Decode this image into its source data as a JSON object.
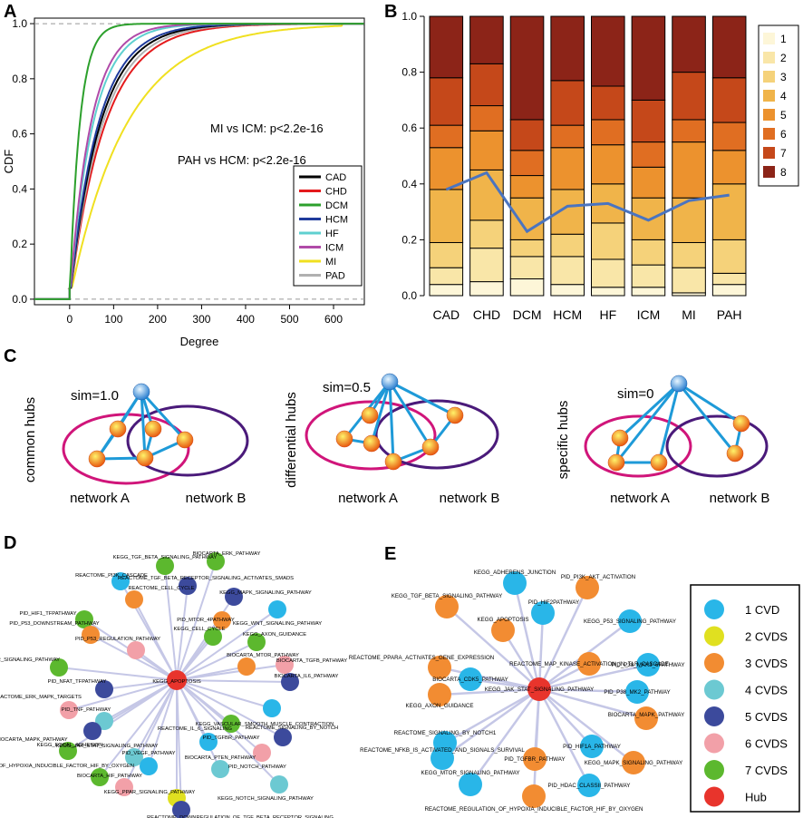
{
  "panels": {
    "A": "A",
    "B": "B",
    "C": "C",
    "D": "D",
    "E": "E"
  },
  "colors": {
    "CAD": "#000000",
    "CHD": "#e41a1c",
    "DCM": "#2ca02c",
    "HCM": "#1f3b9c",
    "HF": "#5fd0d0",
    "ICM": "#b04aa8",
    "MI": "#f0e020",
    "PAD": "#b0b0b0",
    "b1": "#fdf6d8",
    "b2": "#f9e6a8",
    "b3": "#f5d27a",
    "b4": "#f0b44a",
    "b5": "#ec922e",
    "b6": "#e06e22",
    "b7": "#c5481a",
    "b8": "#8c2418",
    "node_blue": "#29b6e8",
    "node_yellow": "#e0e020",
    "node_orange": "#f28c32",
    "node_cyan": "#6cc9d2",
    "node_navy": "#3c4a9c",
    "node_pink": "#f2a0a8",
    "node_green": "#5cb82e",
    "node_hub": "#e8342c",
    "edge": "#c5c7e6"
  },
  "chart_data": [
    {
      "id": "A",
      "type": "line",
      "title": "",
      "xlabel": "Degree",
      "ylabel": "CDF",
      "xlim": [
        -80,
        670
      ],
      "ylim": [
        -0.02,
        1.02
      ],
      "xticks": [
        0,
        100,
        200,
        300,
        400,
        500,
        600
      ],
      "yticks": [
        0.0,
        0.2,
        0.4,
        0.6,
        0.8,
        1.0
      ],
      "ytick_labels": [
        "0.0",
        "0.2",
        "0.4",
        "0.6",
        "0.8",
        "1.0"
      ],
      "annotations": [
        "MI vs ICM: p<2.2e-16",
        "PAH vs HCM: p<2.2e-16"
      ],
      "legend": "right",
      "series": [
        {
          "name": "CAD",
          "k": 0.0145,
          "max": 540
        },
        {
          "name": "CHD",
          "k": 0.0125,
          "max": 540
        },
        {
          "name": "DCM",
          "k": 0.044,
          "max": 300
        },
        {
          "name": "HCM",
          "k": 0.0155,
          "max": 560
        },
        {
          "name": "HF",
          "k": 0.019,
          "max": 520
        },
        {
          "name": "ICM",
          "k": 0.021,
          "max": 540
        },
        {
          "name": "MI",
          "k": 0.0078,
          "max": 620
        },
        {
          "name": "PAD",
          "k": 0.0135,
          "max": 560
        }
      ]
    },
    {
      "id": "B",
      "type": "bar",
      "stacked": true,
      "categories": [
        "CAD",
        "CHD",
        "DCM",
        "HCM",
        "HF",
        "ICM",
        "MI",
        "PAH"
      ],
      "ylim": [
        0,
        1
      ],
      "yticks": [
        0.0,
        0.2,
        0.4,
        0.6,
        0.8,
        1.0
      ],
      "ytick_labels": [
        "0.0",
        "0.2",
        "0.4",
        "0.6",
        "0.8",
        "1.0"
      ],
      "legend": "right",
      "series": [
        {
          "name": "1",
          "values": [
            0.04,
            0.05,
            0.06,
            0.04,
            0.03,
            0.03,
            0.01,
            0.04
          ]
        },
        {
          "name": "2",
          "values": [
            0.06,
            0.12,
            0.08,
            0.1,
            0.1,
            0.08,
            0.09,
            0.04
          ]
        },
        {
          "name": "3",
          "values": [
            0.09,
            0.1,
            0.06,
            0.08,
            0.13,
            0.09,
            0.09,
            0.12
          ]
        },
        {
          "name": "4",
          "values": [
            0.19,
            0.18,
            0.15,
            0.16,
            0.14,
            0.15,
            0.16,
            0.2
          ]
        },
        {
          "name": "5",
          "values": [
            0.15,
            0.14,
            0.08,
            0.15,
            0.14,
            0.11,
            0.2,
            0.12
          ]
        },
        {
          "name": "6",
          "values": [
            0.08,
            0.09,
            0.09,
            0.08,
            0.09,
            0.09,
            0.08,
            0.1
          ]
        },
        {
          "name": "7",
          "values": [
            0.17,
            0.15,
            0.11,
            0.16,
            0.12,
            0.15,
            0.17,
            0.16
          ]
        },
        {
          "name": "8",
          "values": [
            0.22,
            0.17,
            0.37,
            0.23,
            0.25,
            0.3,
            0.2,
            0.22
          ]
        }
      ],
      "overlay_line": {
        "name": "blue line",
        "values": [
          0.38,
          0.44,
          0.23,
          0.32,
          0.33,
          0.27,
          0.34,
          0.36
        ]
      }
    }
  ],
  "panelC": {
    "diagrams": [
      {
        "sim": "sim=1.0",
        "side": "common hubs",
        "netA": "network A",
        "netB": "network B"
      },
      {
        "sim": "sim=0.5",
        "side": "differential hubs",
        "netA": "network A",
        "netB": "network B"
      },
      {
        "sim": "sim=0",
        "side": "specific hubs",
        "netA": "network A",
        "netB": "network B"
      }
    ]
  },
  "panelD": {
    "hub": "KEGG_APOPTOSIS",
    "nodes": [
      {
        "label": "KEGG_TGF_BETA_SIGNALING_PATHWAY",
        "c": "green"
      },
      {
        "label": "BIOCARTA_ERK_PATHWAY",
        "c": "green"
      },
      {
        "label": "REACTOME_PI3K_CASCADE",
        "c": "blue"
      },
      {
        "label": "REACTOME_TGF_BETA_RECEPTOR_SIGNALING_ACTIVATES_SMADS",
        "c": "navy"
      },
      {
        "label": "REACTOME_CELL_CYCLE",
        "c": "orange"
      },
      {
        "label": "KEGG_MAPK_SIGNALING_PATHWAY",
        "c": "navy"
      },
      {
        "label": "KEGG_WNT_SIGNALING_PATHWAY",
        "c": "blue"
      },
      {
        "label": "PID_HIF1_TFPATHWAY",
        "c": "green"
      },
      {
        "label": "PID_MTOR_4PATHWAY",
        "c": "orange"
      },
      {
        "label": "PID_P53_DOWNSTREAM_PATHWAY",
        "c": "orange"
      },
      {
        "label": "KEGG_CELL_CYCLE",
        "c": "green"
      },
      {
        "label": "KEGG_AXON_GUIDANCE",
        "c": "green"
      },
      {
        "label": "PID_P53_REGULATION_PATHWAY",
        "c": "pink"
      },
      {
        "label": "BIOCARTA_TGFB_PATHWAY",
        "c": "pink"
      },
      {
        "label": "KEGG_MTOR_SIGNALING_PATHWAY",
        "c": "green"
      },
      {
        "label": "BIOCARTA_MTOR_PATHWAY",
        "c": "orange"
      },
      {
        "label": "PID_NFAT_TFPATHWAY",
        "c": "navy"
      },
      {
        "label": "BIOCARTA_IL6_PATHWAY",
        "c": "navy"
      },
      {
        "label": "REACTOME_ERK_MAPK_TARGETS",
        "c": "pink"
      },
      {
        "label": "KEGG_VASCULAR_SMOOTH_MUSCLE_CONTRACTION",
        "c": "blue"
      },
      {
        "label": "PID_TNF_PATHWAY",
        "c": "cyan"
      },
      {
        "label": "KEGG_FOCAL_ADHESION",
        "c": "navy"
      },
      {
        "label": "PID_TGFBR_PATHWAY",
        "c": "green"
      },
      {
        "label": "REACTOME_SIGNALING_BY_NOTCH",
        "c": "navy"
      },
      {
        "label": "BIOCARTA_MAPK_PATHWAY",
        "c": "green"
      },
      {
        "label": "REACTOME_IL_6_SIGNALING",
        "c": "blue"
      },
      {
        "label": "KEGG_JAK_STAT_SIGNALING_PATHWAY",
        "c": "cyan"
      },
      {
        "label": "PID_NOTCH_PATHWAY",
        "c": "pink"
      },
      {
        "label": "PID_VEGF_PATHWAY",
        "c": "blue"
      },
      {
        "label": "REACTOME_REGULATION_OF_HYPOXIA_INDUCIBLE_FACTOR_HIF_BY_OXYGEN",
        "c": "green"
      },
      {
        "label": "BIOCARTA_PTEN_PATHWAY",
        "c": "cyan"
      },
      {
        "label": "KEGG_NOTCH_SIGNALING_PATHWAY",
        "c": "cyan"
      },
      {
        "label": "BIOCARTA_HIF_PATHWAY",
        "c": "pink"
      },
      {
        "label": "KEGG_PPAR_SIGNALING_PATHWAY",
        "c": "yellow"
      },
      {
        "label": "REACTOME_DOWNREGULATION_OF_TGF_BETA_RECEPTOR_SIGNALING",
        "c": "navy"
      }
    ]
  },
  "panelE": {
    "hub": "KEGG_JAK_STAT_SIGNALING_PATHWAY",
    "nodes": [
      {
        "label": "KEGG_ADHERENS_JUNCTION",
        "c": "blue"
      },
      {
        "label": "PID_PI3K_AKT_ACTIVATION",
        "c": "orange"
      },
      {
        "label": "KEGG_TGF_BETA_SIGNALING_PATHWAY",
        "c": "orange"
      },
      {
        "label": "PID_HIF2PATHWAY",
        "c": "blue"
      },
      {
        "label": "KEGG_P53_SIGNALING_PATHWAY",
        "c": "blue"
      },
      {
        "label": "KEGG_APOPTOSIS",
        "c": "orange"
      },
      {
        "label": "REACTOME_PPARA_ACTIVATES_GENE_EXPRESSION",
        "c": "orange"
      },
      {
        "label": "REACTOME_MAP_KINASE_ACTIVATION_IN_TLR_CASCADE",
        "c": "orange"
      },
      {
        "label": "PID_P38_MKK3_6PATHWAY",
        "c": "blue"
      },
      {
        "label": "BIOCARTA_CDK5_PATHWAY",
        "c": "blue"
      },
      {
        "label": "KEGG_AXON_GUIDANCE",
        "c": "orange"
      },
      {
        "label": "PID_P38_MK2_PATHWAY",
        "c": "blue"
      },
      {
        "label": "BIOCARTA_MAPK_PATHWAY",
        "c": "orange"
      },
      {
        "label": "REACTOME_SIGNALING_BY_NOTCH1",
        "c": "blue"
      },
      {
        "label": "REACTOME_NFKB_IS_ACTIVATED_AND_SIGNALS_SURVIVAL",
        "c": "blue"
      },
      {
        "label": "PID_HIF1A_PATHWAY",
        "c": "blue"
      },
      {
        "label": "PID_TGFBR_PATHWAY",
        "c": "orange"
      },
      {
        "label": "KEGG_MAPK_SIGNALING_PATHWAY",
        "c": "orange"
      },
      {
        "label": "KEGG_MTOR_SIGNALING_PATHWAY",
        "c": "blue"
      },
      {
        "label": "PID_HDAC_CLASSII_PATHWAY",
        "c": "blue"
      },
      {
        "label": "REACTOME_REGULATION_OF_HYPOXIA_INDUCIBLE_FACTOR_HIF_BY_OXYGEN",
        "c": "orange"
      }
    ]
  },
  "legendE": [
    {
      "label": "1 CVD",
      "c": "blue"
    },
    {
      "label": "2 CVDS",
      "c": "yellow"
    },
    {
      "label": "3 CVDS",
      "c": "orange"
    },
    {
      "label": "4 CVDS",
      "c": "cyan"
    },
    {
      "label": "5 CVDS",
      "c": "navy"
    },
    {
      "label": "6 CVDS",
      "c": "pink"
    },
    {
      "label": "7 CVDS",
      "c": "green"
    },
    {
      "label": "Hub",
      "c": "hub"
    }
  ]
}
